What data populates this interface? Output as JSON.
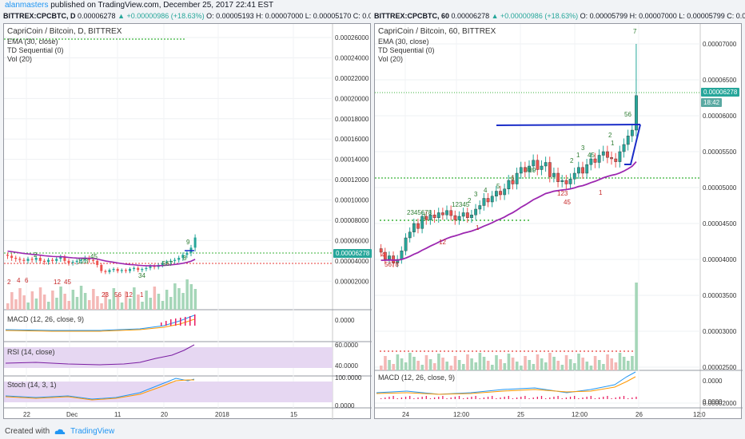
{
  "header": {
    "author": "alanmasters",
    "published_text": "published on TradingView.com, December 25, 2017 22:41 EST"
  },
  "left": {
    "symbar_sym": "BITTREX:CPCBTC, D",
    "symbar_o": "0.00006278",
    "symbar_chg": "▲ +0.00000986 (+18.63%)",
    "symbar_rest": "O: 0.00005193 H: 0.00007000 L: 0.00005170 C: 0.0000",
    "title": "CapriCoin / Bitcoin, D, BITTREX",
    "studies": [
      "EMA (30, close)",
      "TD Sequential (0)",
      "Vol (20)"
    ],
    "macd_label": "MACD (12, 26, close, 9)",
    "rsi_label": "RSI (14, close)",
    "stoch_label": "Stoch (14, 3, 1)",
    "last_price": "0.00006278",
    "xticks": [
      "22",
      "Dec",
      "11",
      "20",
      "2018",
      "15"
    ],
    "macd_tick": "0.0000",
    "rsi_ticks": [
      "60.0000",
      "40.0000"
    ],
    "stoch_ticks": [
      "100.0000",
      "0.0000"
    ]
  },
  "right": {
    "symbar_sym": "BITTREX:CPCBTC, 60",
    "symbar_o": "0.00006278",
    "symbar_chg": "▲ +0.00000986 (+18.63%)",
    "symbar_rest": "O: 0.00005799 H: 0.00007000 L: 0.00005799 C: 0.000",
    "title": "CapriCoin / Bitcoin, 60, BITTREX",
    "studies": [
      "EMA (30, close)",
      "TD Sequential (0)",
      "Vol (20)"
    ],
    "macd_label": "MACD (12, 26, close, 9)",
    "last_price": "0.00006278",
    "countdown": "18:42",
    "xticks": [
      "24",
      "12:00",
      "25",
      "12:00",
      "26",
      "12:0"
    ],
    "macd_ticks": [
      "0.0000",
      "0.0000"
    ]
  },
  "footer": {
    "created_with": "Created with",
    "brand": "TradingView"
  },
  "chart_data": [
    {
      "type": "candlestick",
      "title": "CapriCoin / Bitcoin, D, BITTREX",
      "yaxis_ticks": [
        "0.00026000",
        "0.00024000",
        "0.00022000",
        "0.00020000",
        "0.00018000",
        "0.00016000",
        "0.00014000",
        "0.00012000",
        "0.00010000",
        "0.00008000",
        "0.00006000",
        "0.00004000",
        "0.00002000"
      ],
      "ylim": [
        0.0,
        0.00027
      ],
      "x_labels": [
        "22",
        "Dec",
        "11",
        "20",
        "2018",
        "15"
      ],
      "last": 6.278e-05,
      "td_counts_visible": [
        "9",
        "4",
        "5",
        "1",
        "2",
        "3",
        "5",
        "6",
        "7",
        "8"
      ],
      "colors": {
        "up": "#26a69a",
        "down": "#ef5350",
        "ema": "#9c27b0"
      }
    },
    {
      "type": "candlestick",
      "title": "CapriCoin / Bitcoin, 60, BITTREX",
      "yaxis_ticks": [
        "0.00007000",
        "0.00006500",
        "0.00006000",
        "0.00005500",
        "0.00005000",
        "0.00004500",
        "0.00004000",
        "0.00003500",
        "0.00003000",
        "0.00002500",
        "0.00002000"
      ],
      "ylim": [
        1.95e-05,
        7.25e-05
      ],
      "x_labels": [
        "24",
        "12:00",
        "25",
        "12:00",
        "26",
        "12:0"
      ],
      "last": 6.278e-05,
      "high": 7e-05,
      "td_counts_visible": [
        "7",
        "56",
        "2",
        "3",
        "4",
        "5",
        "6",
        "7",
        "8",
        "9"
      ],
      "colors": {
        "up": "#26a69a",
        "down": "#ef5350",
        "ema": "#9c27b0",
        "trendline": "#1a2dc8"
      }
    }
  ]
}
